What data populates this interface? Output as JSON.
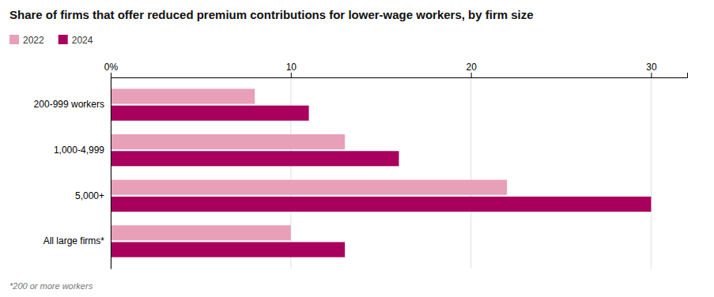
{
  "chart_data": {
    "type": "bar",
    "orientation": "horizontal",
    "title": "Share of firms that offer reduced premium contributions for lower-wage workers, by firm size",
    "categories": [
      "200-999 workers",
      "1,000-4,999",
      "5,000+",
      "All large firms*"
    ],
    "series": [
      {
        "name": "2022",
        "color": "#e8a0b8",
        "values": [
          8,
          13,
          22,
          10
        ]
      },
      {
        "name": "2024",
        "color": "#a8005c",
        "values": [
          11,
          16,
          30,
          13
        ]
      }
    ],
    "xlim": [
      0,
      32
    ],
    "xticks": [
      {
        "value": 0,
        "label": "0%"
      },
      10,
      20,
      30
    ],
    "grid": true,
    "legend": "upper left",
    "annotations": [
      "*200 or more workers"
    ]
  }
}
